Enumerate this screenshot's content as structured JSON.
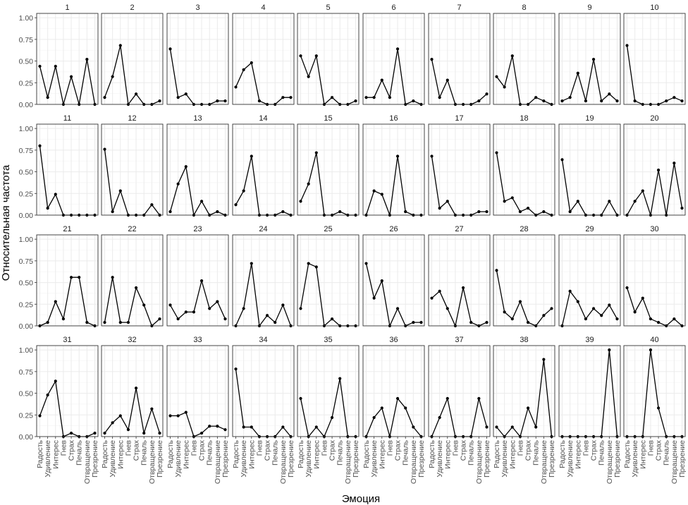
{
  "chart_data": {
    "type": "line",
    "layout": "small-multiples",
    "xlabel": "Эмоция",
    "ylabel": "Относительная частота",
    "categories": [
      "Радость",
      "Удивление",
      "Интерес",
      "Гнев",
      "Страх",
      "Печаль",
      "Отвращение",
      "Презрение"
    ],
    "ylim": [
      0,
      1.05
    ],
    "yticks": [
      "0.00",
      "0.25",
      "0.50",
      "0.75",
      "1.00"
    ],
    "grid": true,
    "panels": [
      {
        "label": "1",
        "values": [
          0.44,
          0.08,
          0.44,
          0.0,
          0.32,
          0.0,
          0.52,
          0.0
        ]
      },
      {
        "label": "2",
        "values": [
          0.08,
          0.32,
          0.68,
          0.0,
          0.12,
          0.0,
          0.0,
          0.04
        ]
      },
      {
        "label": "3",
        "values": [
          0.64,
          0.08,
          0.12,
          0.0,
          0.0,
          0.0,
          0.04,
          0.04
        ]
      },
      {
        "label": "4",
        "values": [
          0.2,
          0.4,
          0.48,
          0.04,
          0.0,
          0.0,
          0.08,
          0.08
        ]
      },
      {
        "label": "5",
        "values": [
          0.56,
          0.32,
          0.56,
          0.0,
          0.08,
          0.0,
          0.0,
          0.04
        ]
      },
      {
        "label": "6",
        "values": [
          0.08,
          0.08,
          0.28,
          0.08,
          0.64,
          0.0,
          0.04,
          0.0
        ]
      },
      {
        "label": "7",
        "values": [
          0.52,
          0.08,
          0.28,
          0.0,
          0.0,
          0.0,
          0.04,
          0.12
        ]
      },
      {
        "label": "8",
        "values": [
          0.32,
          0.2,
          0.56,
          0.0,
          0.0,
          0.08,
          0.04,
          0.0
        ]
      },
      {
        "label": "9",
        "values": [
          0.04,
          0.08,
          0.36,
          0.04,
          0.52,
          0.04,
          0.12,
          0.04
        ]
      },
      {
        "label": "10",
        "values": [
          0.68,
          0.04,
          0.0,
          0.0,
          0.0,
          0.04,
          0.08,
          0.04
        ]
      },
      {
        "label": "11",
        "values": [
          0.8,
          0.08,
          0.24,
          0.0,
          0.0,
          0.0,
          0.0,
          0.0
        ]
      },
      {
        "label": "12",
        "values": [
          0.76,
          0.04,
          0.28,
          0.0,
          0.0,
          0.0,
          0.12,
          0.0
        ]
      },
      {
        "label": "13",
        "values": [
          0.04,
          0.36,
          0.56,
          0.0,
          0.16,
          0.0,
          0.04,
          0.0
        ]
      },
      {
        "label": "14",
        "values": [
          0.12,
          0.28,
          0.68,
          0.0,
          0.0,
          0.0,
          0.04,
          0.0
        ]
      },
      {
        "label": "15",
        "values": [
          0.16,
          0.36,
          0.72,
          0.0,
          0.0,
          0.04,
          0.0,
          0.0
        ]
      },
      {
        "label": "16",
        "values": [
          0.0,
          0.28,
          0.24,
          0.0,
          0.68,
          0.04,
          0.0,
          0.0
        ]
      },
      {
        "label": "17",
        "values": [
          0.68,
          0.08,
          0.16,
          0.0,
          0.0,
          0.0,
          0.04,
          0.04
        ]
      },
      {
        "label": "18",
        "values": [
          0.72,
          0.16,
          0.2,
          0.04,
          0.08,
          0.0,
          0.04,
          0.0
        ]
      },
      {
        "label": "19",
        "values": [
          0.64,
          0.04,
          0.16,
          0.0,
          0.0,
          0.0,
          0.16,
          0.0
        ]
      },
      {
        "label": "20",
        "values": [
          0.0,
          0.16,
          0.28,
          0.0,
          0.52,
          0.0,
          0.6,
          0.08
        ]
      },
      {
        "label": "21",
        "values": [
          0.0,
          0.04,
          0.28,
          0.08,
          0.56,
          0.56,
          0.04,
          0.0
        ]
      },
      {
        "label": "22",
        "values": [
          0.04,
          0.56,
          0.04,
          0.04,
          0.44,
          0.24,
          0.0,
          0.08
        ]
      },
      {
        "label": "23",
        "values": [
          0.24,
          0.08,
          0.16,
          0.16,
          0.52,
          0.2,
          0.28,
          0.08
        ]
      },
      {
        "label": "24",
        "values": [
          0.0,
          0.2,
          0.72,
          0.0,
          0.12,
          0.04,
          0.24,
          0.0
        ]
      },
      {
        "label": "25",
        "values": [
          0.2,
          0.72,
          0.68,
          0.0,
          0.08,
          0.0,
          0.0,
          0.0
        ]
      },
      {
        "label": "26",
        "values": [
          0.72,
          0.32,
          0.52,
          0.0,
          0.2,
          0.0,
          0.04,
          0.04
        ]
      },
      {
        "label": "27",
        "values": [
          0.32,
          0.4,
          0.2,
          0.0,
          0.44,
          0.04,
          0.0,
          0.04
        ]
      },
      {
        "label": "28",
        "values": [
          0.64,
          0.16,
          0.08,
          0.28,
          0.04,
          0.0,
          0.12,
          0.2
        ]
      },
      {
        "label": "29",
        "values": [
          0.0,
          0.4,
          0.28,
          0.08,
          0.2,
          0.12,
          0.24,
          0.08
        ]
      },
      {
        "label": "30",
        "values": [
          0.44,
          0.16,
          0.32,
          0.08,
          0.04,
          0.0,
          0.08,
          0.0
        ]
      },
      {
        "label": "31",
        "values": [
          0.24,
          0.48,
          0.64,
          0.0,
          0.04,
          0.0,
          0.0,
          0.04
        ]
      },
      {
        "label": "32",
        "values": [
          0.04,
          0.16,
          0.24,
          0.08,
          0.56,
          0.04,
          0.32,
          0.04
        ]
      },
      {
        "label": "33",
        "values": [
          0.24,
          0.24,
          0.28,
          0.0,
          0.04,
          0.12,
          0.12,
          0.08
        ]
      },
      {
        "label": "34",
        "values": [
          0.78,
          0.11,
          0.11,
          0.0,
          0.0,
          0.0,
          0.11,
          0.0
        ]
      },
      {
        "label": "35",
        "values": [
          0.44,
          0.0,
          0.11,
          0.0,
          0.22,
          0.67,
          0.0,
          0.0
        ]
      },
      {
        "label": "36",
        "values": [
          0.0,
          0.22,
          0.33,
          0.0,
          0.44,
          0.33,
          0.11,
          0.0
        ]
      },
      {
        "label": "37",
        "values": [
          0.0,
          0.22,
          0.44,
          0.0,
          0.0,
          0.0,
          0.44,
          0.11
        ]
      },
      {
        "label": "38",
        "values": [
          0.11,
          0.0,
          0.11,
          0.0,
          0.33,
          0.11,
          0.89,
          0.0
        ]
      },
      {
        "label": "39",
        "values": [
          0.0,
          0.0,
          0.0,
          0.0,
          0.0,
          0.0,
          1.0,
          0.0
        ]
      },
      {
        "label": "40",
        "values": [
          0.0,
          0.0,
          0.0,
          1.0,
          0.33,
          0.0,
          0.0,
          0.0
        ]
      }
    ]
  },
  "colors": {
    "line": "#000000",
    "grid": "#ebebeb",
    "panel_border": "#333333",
    "tick_text": "#4d4d4d",
    "title_text": "#1a1a1a"
  }
}
